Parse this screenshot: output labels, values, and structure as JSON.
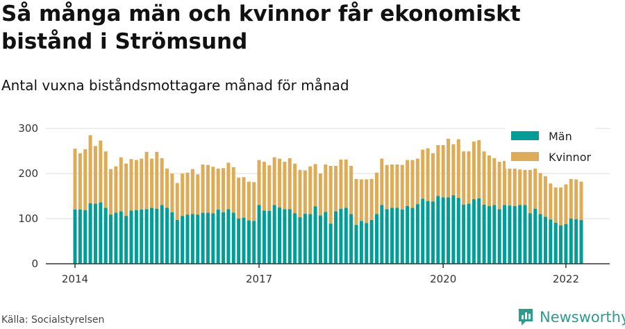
{
  "title": "Så många män och kvinnor får ekonomiskt bistånd i Strömsund",
  "subtitle": "Antal vuxna biståndsmottagare månad för månad",
  "source": "Källa: Socialstyrelsen",
  "brand": {
    "name": "Newsworthy",
    "icon": "newsworthy-logo-icon"
  },
  "colors": {
    "men": "#009e96",
    "women": "#deab57",
    "grid": "#dddddd",
    "axis": "#333333"
  },
  "chart_data": {
    "type": "bar",
    "stacked": true,
    "x_tick_labels": [
      "2014",
      "2017",
      "2020",
      "2022"
    ],
    "ylim": [
      0,
      300
    ],
    "y_ticks": [
      0,
      100,
      200,
      300
    ],
    "grid": true,
    "legend_position": "top-right",
    "series": [
      {
        "name": "Män",
        "values": [
          120,
          120,
          119,
          134,
          133,
          136,
          124,
          109,
          113,
          116,
          106,
          118,
          119,
          120,
          121,
          124,
          122,
          130,
          124,
          114,
          97,
          106,
          109,
          110,
          109,
          113,
          113,
          112,
          120,
          114,
          121,
          113,
          100,
          102,
          96,
          95,
          130,
          118,
          117,
          130,
          125,
          121,
          121,
          112,
          103,
          111,
          110,
          127,
          107,
          115,
          89,
          116,
          122,
          124,
          110,
          86,
          95,
          90,
          97,
          110,
          130,
          121,
          124,
          124,
          120,
          128,
          124,
          132,
          144,
          139,
          138,
          150,
          147,
          147,
          152,
          146,
          131,
          133,
          143,
          145,
          131,
          128,
          130,
          121,
          130,
          129,
          128,
          130,
          130,
          112,
          122,
          110,
          104,
          98,
          91,
          85,
          88,
          100,
          99,
          97
        ]
      },
      {
        "name": "Kvinnor",
        "values": [
          135,
          125,
          135,
          151,
          128,
          137,
          125,
          101,
          103,
          120,
          116,
          114,
          111,
          113,
          127,
          109,
          126,
          104,
          87,
          86,
          82,
          94,
          93,
          100,
          89,
          107,
          106,
          103,
          91,
          98,
          103,
          101,
          91,
          90,
          86,
          86,
          100,
          108,
          101,
          106,
          108,
          105,
          113,
          110,
          105,
          96,
          106,
          94,
          93,
          105,
          128,
          101,
          109,
          107,
          107,
          102,
          92,
          97,
          91,
          92,
          103,
          98,
          96,
          96,
          99,
          102,
          106,
          101,
          109,
          117,
          107,
          113,
          116,
          130,
          113,
          130,
          118,
          116,
          128,
          129,
          118,
          112,
          104,
          105,
          98,
          84,
          90,
          79,
          78,
          96,
          90,
          91,
          90,
          80,
          78,
          84,
          88,
          88,
          88,
          85
        ]
      }
    ]
  }
}
